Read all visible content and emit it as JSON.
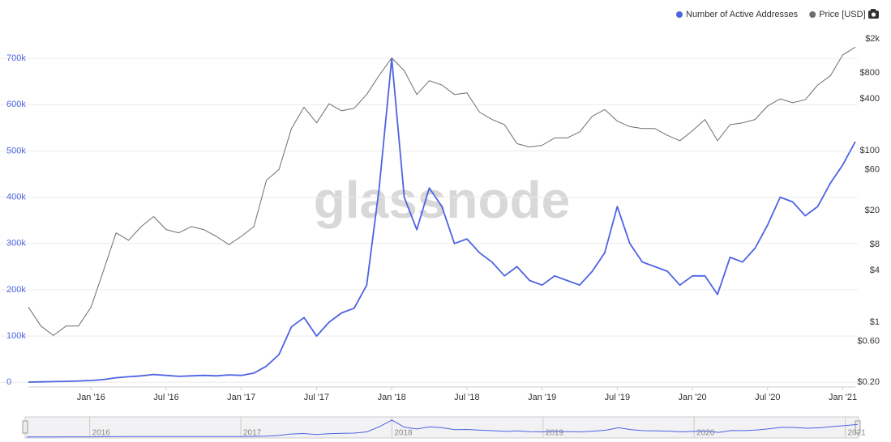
{
  "chart_data": {
    "type": "line",
    "watermark": "glassnode",
    "legend": "top-right",
    "grid": true,
    "x": [
      "2015-08",
      "2015-09",
      "2015-10",
      "2015-11",
      "2015-12",
      "2016-01",
      "2016-02",
      "2016-03",
      "2016-04",
      "2016-05",
      "2016-06",
      "2016-07",
      "2016-08",
      "2016-09",
      "2016-10",
      "2016-11",
      "2016-12",
      "2017-01",
      "2017-02",
      "2017-03",
      "2017-04",
      "2017-05",
      "2017-06",
      "2017-07",
      "2017-08",
      "2017-09",
      "2017-10",
      "2017-11",
      "2017-12",
      "2018-01",
      "2018-02",
      "2018-03",
      "2018-04",
      "2018-05",
      "2018-06",
      "2018-07",
      "2018-08",
      "2018-09",
      "2018-10",
      "2018-11",
      "2018-12",
      "2019-01",
      "2019-02",
      "2019-03",
      "2019-04",
      "2019-05",
      "2019-06",
      "2019-07",
      "2019-08",
      "2019-09",
      "2019-10",
      "2019-11",
      "2019-12",
      "2020-01",
      "2020-02",
      "2020-03",
      "2020-04",
      "2020-05",
      "2020-06",
      "2020-07",
      "2020-08",
      "2020-09",
      "2020-10",
      "2020-11",
      "2020-12",
      "2021-01",
      "2021-02"
    ],
    "xlim": [
      "2015-08",
      "2021-02"
    ],
    "xticks": [
      {
        "value": "2016-01",
        "label": "Jan '16"
      },
      {
        "value": "2016-07",
        "label": "Jul '16"
      },
      {
        "value": "2017-01",
        "label": "Jan '17"
      },
      {
        "value": "2017-07",
        "label": "Jul '17"
      },
      {
        "value": "2018-01",
        "label": "Jan '18"
      },
      {
        "value": "2018-07",
        "label": "Jul '18"
      },
      {
        "value": "2019-01",
        "label": "Jan '19"
      },
      {
        "value": "2019-07",
        "label": "Jul '19"
      },
      {
        "value": "2020-01",
        "label": "Jan '20"
      },
      {
        "value": "2020-07",
        "label": "Jul '20"
      },
      {
        "value": "2021-01",
        "label": "Jan '21"
      }
    ],
    "ylim": [
      -10000,
      765000
    ],
    "yticks": [
      0,
      {
        "value": 100000,
        "label": "100k"
      },
      {
        "value": 200000,
        "label": "200k"
      },
      {
        "value": 300000,
        "label": "300k"
      },
      {
        "value": 400000,
        "label": "400k"
      },
      {
        "value": 500000,
        "label": "500k"
      },
      {
        "value": 600000,
        "label": "600k"
      },
      {
        "value": 700000,
        "label": "700k"
      }
    ],
    "y2scale": "log",
    "y2lim": [
      0.176,
      2650
    ],
    "y2ticks": [
      {
        "value": 0.2,
        "label": "$0.20"
      },
      {
        "value": 0.6,
        "label": "$0.60"
      },
      {
        "value": 1,
        "label": "$1"
      },
      {
        "value": 4,
        "label": "$4"
      },
      {
        "value": 8,
        "label": "$8"
      },
      {
        "value": 20,
        "label": "$20"
      },
      {
        "value": 60,
        "label": "$60"
      },
      {
        "value": 100,
        "label": "$100"
      },
      {
        "value": 400,
        "label": "$400"
      },
      {
        "value": 800,
        "label": "$800"
      },
      {
        "value": 2000,
        "label": "$2k"
      }
    ],
    "navigator_ticks": [
      {
        "value": "2016-01",
        "label": "2016"
      },
      {
        "value": "2017-01",
        "label": "2017"
      },
      {
        "value": "2018-01",
        "label": "2018"
      },
      {
        "value": "2019-01",
        "label": "2019"
      },
      {
        "value": "2020-01",
        "label": "2020"
      },
      {
        "value": "2021-01",
        "label": "2021"
      }
    ],
    "series": [
      {
        "name": "Number of Active Addresses",
        "color": "#4d63e3",
        "axis": "y",
        "values": [
          500,
          1000,
          1500,
          2000,
          3000,
          4000,
          6000,
          10000,
          12000,
          14000,
          17000,
          15000,
          13000,
          14000,
          15000,
          14000,
          16000,
          15000,
          20000,
          35000,
          60000,
          120000,
          140000,
          100000,
          130000,
          150000,
          160000,
          210000,
          420000,
          700000,
          400000,
          330000,
          420000,
          380000,
          300000,
          310000,
          280000,
          260000,
          230000,
          250000,
          220000,
          210000,
          230000,
          220000,
          210000,
          240000,
          280000,
          380000,
          300000,
          260000,
          250000,
          240000,
          210000,
          230000,
          230000,
          190000,
          270000,
          260000,
          290000,
          340000,
          400000,
          390000,
          360000,
          380000,
          430000,
          470000,
          520000
        ]
      },
      {
        "name": "Price [USD]",
        "color": "#6e6e6e",
        "axis": "y2",
        "values": [
          1.5,
          0.9,
          0.7,
          0.9,
          0.9,
          1.5,
          4,
          11,
          9,
          13,
          17,
          12,
          11,
          13,
          12,
          10,
          8,
          10,
          13,
          45,
          60,
          180,
          320,
          210,
          350,
          290,
          310,
          450,
          750,
          1200,
          850,
          450,
          650,
          580,
          450,
          470,
          280,
          230,
          200,
          120,
          110,
          115,
          140,
          140,
          165,
          250,
          300,
          220,
          190,
          180,
          180,
          150,
          130,
          170,
          230,
          130,
          200,
          210,
          230,
          330,
          400,
          360,
          390,
          580,
          740,
          1300,
          1600
        ]
      }
    ]
  }
}
